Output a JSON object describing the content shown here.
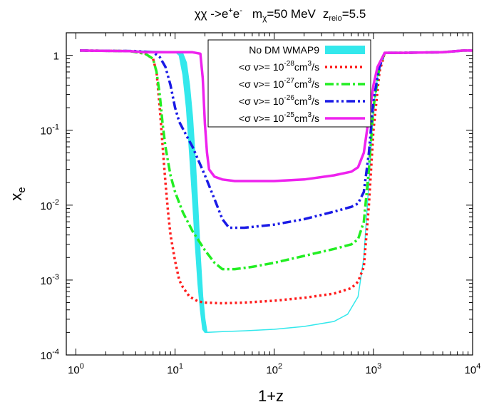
{
  "chart_data": {
    "type": "line",
    "title": {
      "particle": "χχ ->e",
      "sup1": "+",
      "mid1": "e",
      "sup2": "-",
      "mass_label": "m",
      "mass_sub": "χ",
      "mass_value": "=50 MeV",
      "z_label": "z",
      "z_sub": "reio",
      "z_value": "=5.5"
    },
    "xlabel": "1+z",
    "ylabel": {
      "base": "x",
      "sub": "e"
    },
    "xscale": "log",
    "yscale": "log",
    "xlim": [
      0.8,
      10000
    ],
    "ylim": [
      0.0001,
      2
    ],
    "x_ticks": [
      {
        "value": 1,
        "base": "10",
        "exp": "0"
      },
      {
        "value": 10,
        "base": "10",
        "exp": "1"
      },
      {
        "value": 100,
        "base": "10",
        "exp": "2"
      },
      {
        "value": 1000,
        "base": "10",
        "exp": "3"
      },
      {
        "value": 10000,
        "base": "10",
        "exp": "4"
      }
    ],
    "y_ticks": [
      {
        "value": 1,
        "base": "10",
        "exp": "0",
        "plain": "1"
      },
      {
        "value": 0.1,
        "base": "10",
        "exp": "-1"
      },
      {
        "value": 0.01,
        "base": "10",
        "exp": "-2"
      },
      {
        "value": 0.001,
        "base": "10",
        "exp": "-3"
      },
      {
        "value": 0.0001,
        "base": "10",
        "exp": "-4"
      }
    ],
    "legend_position": "top-right",
    "band": {
      "name": "No DM WMAP9",
      "color": "#33e8ec",
      "upper": [
        [
          1.1,
          1.16
        ],
        [
          3,
          1.16
        ],
        [
          10,
          1.12
        ],
        [
          12,
          1.05
        ],
        [
          13,
          0.8
        ],
        [
          14,
          0.4
        ],
        [
          15,
          0.15
        ],
        [
          16,
          0.04
        ],
        [
          17,
          0.009
        ],
        [
          18,
          0.002
        ],
        [
          19,
          0.0006
        ],
        [
          20,
          0.0003
        ],
        [
          21,
          0.0002
        ],
        [
          30,
          0.000205
        ],
        [
          50,
          0.00021
        ],
        [
          100,
          0.00022
        ],
        [
          200,
          0.00024
        ],
        [
          400,
          0.00028
        ],
        [
          550,
          0.00035
        ],
        [
          700,
          0.0006
        ],
        [
          800,
          0.002
        ],
        [
          900,
          0.02
        ],
        [
          1000,
          0.2
        ],
        [
          1150,
          0.8
        ],
        [
          1300,
          1.08
        ],
        [
          2000,
          1.08
        ],
        [
          5000,
          1.1
        ],
        [
          8000,
          1.16
        ],
        [
          10000,
          1.16
        ]
      ],
      "lower": [
        [
          1.1,
          1.16
        ],
        [
          3,
          1.16
        ],
        [
          10,
          1.12
        ],
        [
          11,
          1.0
        ],
        [
          12,
          0.55
        ],
        [
          13,
          0.2
        ],
        [
          14,
          0.05
        ],
        [
          15,
          0.012
        ],
        [
          16,
          0.003
        ],
        [
          17,
          0.0009
        ],
        [
          18,
          0.0004
        ],
        [
          19,
          0.00022
        ],
        [
          20,
          0.0002
        ],
        [
          30,
          0.000205
        ],
        [
          50,
          0.00021
        ],
        [
          100,
          0.00022
        ],
        [
          200,
          0.00024
        ],
        [
          400,
          0.00028
        ],
        [
          550,
          0.00035
        ],
        [
          700,
          0.0006
        ],
        [
          800,
          0.002
        ],
        [
          900,
          0.02
        ],
        [
          1000,
          0.2
        ],
        [
          1150,
          0.8
        ],
        [
          1300,
          1.08
        ],
        [
          2000,
          1.08
        ],
        [
          5000,
          1.1
        ],
        [
          8000,
          1.16
        ],
        [
          10000,
          1.16
        ]
      ]
    },
    "series": [
      {
        "name": "10^-28 cm3/s",
        "label_prefix": "<σ v>= 10",
        "label_exp": "-28",
        "label_unit": "cm",
        "label_unit_exp": "3",
        "label_suffix": "/s",
        "color": "#ff1a1a",
        "dash": "3,4",
        "points": [
          [
            1.1,
            1.16
          ],
          [
            3.5,
            1.14
          ],
          [
            5,
            1.05
          ],
          [
            6,
            0.9
          ],
          [
            6.5,
            0.6
          ],
          [
            7,
            0.2
          ],
          [
            7.5,
            0.06
          ],
          [
            8,
            0.02
          ],
          [
            8.5,
            0.008
          ],
          [
            9,
            0.004
          ],
          [
            10,
            0.0018
          ],
          [
            11,
            0.001
          ],
          [
            12,
            0.0008
          ],
          [
            14,
            0.0006
          ],
          [
            17,
            0.00052
          ],
          [
            20,
            0.0005
          ],
          [
            30,
            0.00049
          ],
          [
            50,
            0.0005
          ],
          [
            100,
            0.00053
          ],
          [
            200,
            0.00058
          ],
          [
            400,
            0.00066
          ],
          [
            600,
            0.00078
          ],
          [
            700,
            0.00095
          ],
          [
            800,
            0.0015
          ],
          [
            900,
            0.01
          ],
          [
            1000,
            0.1
          ],
          [
            1150,
            0.6
          ],
          [
            1300,
            1.08
          ],
          [
            2000,
            1.08
          ],
          [
            5000,
            1.1
          ],
          [
            8000,
            1.16
          ],
          [
            10000,
            1.16
          ]
        ]
      },
      {
        "name": "10^-27 cm3/s",
        "label_prefix": "<σ v>= 10",
        "label_exp": "-27",
        "label_unit": "cm",
        "label_unit_exp": "3",
        "label_suffix": "/s",
        "color": "#22ee22",
        "dash": "12,4,3,4",
        "points": [
          [
            1.1,
            1.16
          ],
          [
            3.5,
            1.14
          ],
          [
            5,
            1.05
          ],
          [
            6,
            0.9
          ],
          [
            6.5,
            0.6
          ],
          [
            7,
            0.3
          ],
          [
            7.5,
            0.12
          ],
          [
            8,
            0.06
          ],
          [
            9,
            0.025
          ],
          [
            10,
            0.015
          ],
          [
            12,
            0.008
          ],
          [
            15,
            0.0045
          ],
          [
            20,
            0.0025
          ],
          [
            25,
            0.0017
          ],
          [
            30,
            0.0014
          ],
          [
            40,
            0.0014
          ],
          [
            60,
            0.0015
          ],
          [
            100,
            0.0017
          ],
          [
            200,
            0.0021
          ],
          [
            400,
            0.0026
          ],
          [
            600,
            0.003
          ],
          [
            700,
            0.0035
          ],
          [
            800,
            0.006
          ],
          [
            900,
            0.03
          ],
          [
            1000,
            0.2
          ],
          [
            1150,
            0.7
          ],
          [
            1300,
            1.08
          ],
          [
            2000,
            1.08
          ],
          [
            5000,
            1.1
          ],
          [
            8000,
            1.16
          ],
          [
            10000,
            1.16
          ]
        ]
      },
      {
        "name": "10^-26 cm3/s",
        "label_prefix": "<σ v>= 10",
        "label_exp": "-26",
        "label_unit": "cm",
        "label_unit_exp": "3",
        "label_suffix": "/s",
        "color": "#1a1ae6",
        "dash": "12,4,3,4,3,4",
        "points": [
          [
            1.1,
            1.16
          ],
          [
            4,
            1.14
          ],
          [
            6,
            1.1
          ],
          [
            7,
            0.95
          ],
          [
            8,
            0.7
          ],
          [
            9,
            0.4
          ],
          [
            10,
            0.2
          ],
          [
            11,
            0.13
          ],
          [
            13,
            0.085
          ],
          [
            15,
            0.06
          ],
          [
            20,
            0.025
          ],
          [
            25,
            0.012
          ],
          [
            30,
            0.0065
          ],
          [
            35,
            0.005
          ],
          [
            50,
            0.005
          ],
          [
            100,
            0.0055
          ],
          [
            200,
            0.0065
          ],
          [
            400,
            0.0082
          ],
          [
            600,
            0.0095
          ],
          [
            700,
            0.0105
          ],
          [
            800,
            0.015
          ],
          [
            900,
            0.05
          ],
          [
            1000,
            0.25
          ],
          [
            1150,
            0.7
          ],
          [
            1300,
            1.08
          ],
          [
            2000,
            1.08
          ],
          [
            5000,
            1.1
          ],
          [
            8000,
            1.16
          ],
          [
            10000,
            1.16
          ]
        ]
      },
      {
        "name": "10^-25 cm3/s",
        "label_prefix": "<σ v>= 10",
        "label_exp": "-25",
        "label_unit": "cm",
        "label_unit_exp": "3",
        "label_suffix": "/s",
        "color": "#ee22ee",
        "dash": "",
        "points": [
          [
            1.1,
            1.16
          ],
          [
            3.5,
            1.14
          ],
          [
            5,
            1.1
          ],
          [
            15,
            1.1
          ],
          [
            18,
            1.05
          ],
          [
            19,
            0.5
          ],
          [
            20,
            0.12
          ],
          [
            21,
            0.05
          ],
          [
            22,
            0.03
          ],
          [
            25,
            0.024
          ],
          [
            30,
            0.022
          ],
          [
            40,
            0.021
          ],
          [
            100,
            0.021
          ],
          [
            200,
            0.022
          ],
          [
            400,
            0.025
          ],
          [
            600,
            0.028
          ],
          [
            700,
            0.032
          ],
          [
            800,
            0.05
          ],
          [
            900,
            0.15
          ],
          [
            1000,
            0.4
          ],
          [
            1100,
            0.7
          ],
          [
            1300,
            1.08
          ],
          [
            2000,
            1.08
          ],
          [
            5000,
            1.1
          ],
          [
            8000,
            1.16
          ],
          [
            10000,
            1.16
          ]
        ]
      }
    ]
  }
}
